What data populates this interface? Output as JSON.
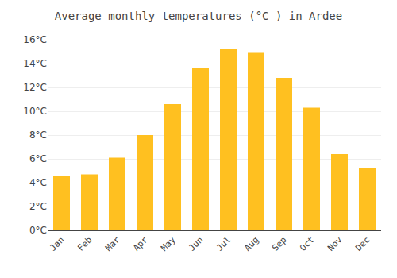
{
  "chart_data": {
    "type": "bar",
    "title": "Average monthly temperatures (°C ) in Ardee",
    "categories": [
      "Jan",
      "Feb",
      "Mar",
      "Apr",
      "May",
      "Jun",
      "Jul",
      "Aug",
      "Sep",
      "Oct",
      "Nov",
      "Dec"
    ],
    "values": [
      4.6,
      4.7,
      6.1,
      8.0,
      10.6,
      13.6,
      15.2,
      14.9,
      12.8,
      10.3,
      6.4,
      5.2
    ],
    "color": "#FFC020",
    "ylim": [
      0,
      16
    ],
    "yticks": [
      {
        "value": 0,
        "label": "0°C"
      },
      {
        "value": 2,
        "label": "2°C"
      },
      {
        "value": 4,
        "label": "4°C"
      },
      {
        "value": 6,
        "label": "6°C"
      },
      {
        "value": 8,
        "label": "8°C"
      },
      {
        "value": 10,
        "label": "10°C"
      },
      {
        "value": 12,
        "label": "12°C"
      },
      {
        "value": 14,
        "label": "14°C"
      },
      {
        "value": 16,
        "label": "16°C"
      }
    ],
    "grid": true
  }
}
